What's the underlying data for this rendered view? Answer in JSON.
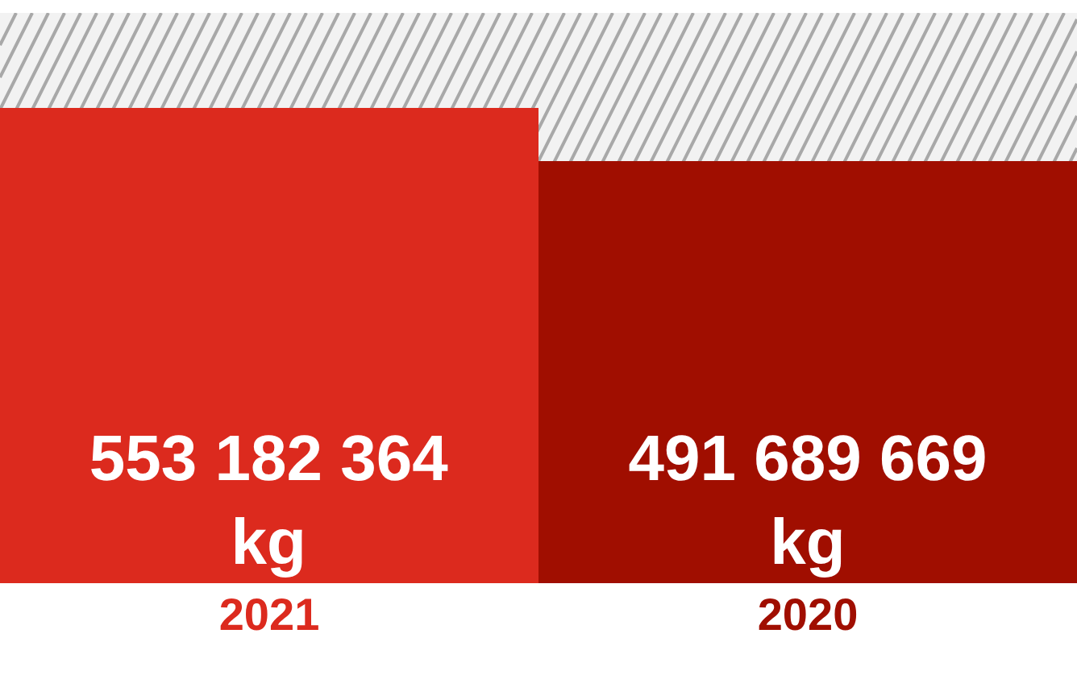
{
  "chart_data": {
    "type": "bar",
    "categories": [
      "2021",
      "2020"
    ],
    "values": [
      553182364,
      491689669
    ],
    "colors": [
      "#dc2a1e",
      "#a00e00"
    ],
    "value_labels": [
      "553 182 364 kg",
      "491 689 669 kg"
    ],
    "grid": false,
    "legend": false
  }
}
